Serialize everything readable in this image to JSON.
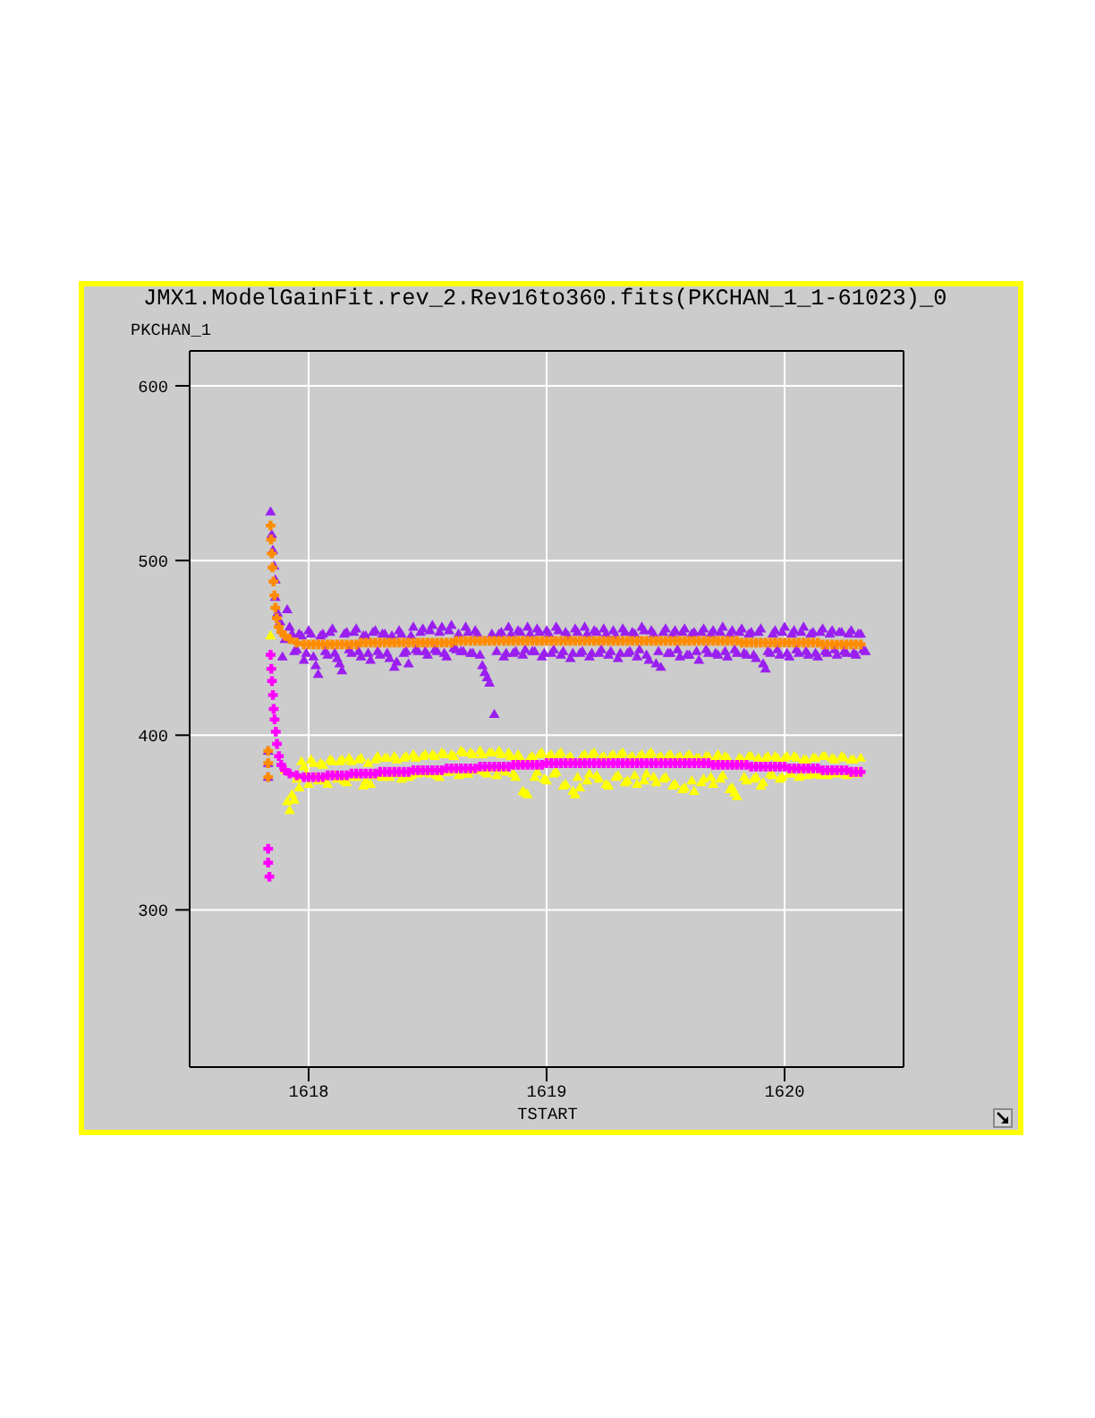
{
  "chart_data": {
    "type": "scatter",
    "title": "JMX1.ModelGainFit.rev_2.Rev16to360.fits(PKCHAN_1_1-61023)_0",
    "xlabel": "TSTART",
    "ylabel": "PKCHAN_1",
    "xlim": [
      1617.5,
      1620.5
    ],
    "ylim": [
      210,
      620
    ],
    "xticks": [
      1618,
      1619,
      1620
    ],
    "yticks": [
      300,
      400,
      500,
      600
    ],
    "grid": true,
    "series": [
      {
        "marker": "triangle",
        "color": "#9a1ff0",
        "x": [
          1617.83,
          1617.83,
          1617.83,
          1617.84,
          1617.845,
          1617.85,
          1617.855,
          1617.86,
          1617.86,
          1617.87,
          1617.88,
          1617.91,
          1617.9,
          1617.89,
          1617.92,
          1617.94,
          1617.96,
          1617.98,
          1618,
          1618.02,
          1618.04,
          1618.06,
          1618.08,
          1618.1,
          1618.12,
          1618.14,
          1618.16,
          1618.18,
          1618.2,
          1618.22,
          1618.24,
          1618.26,
          1618.28,
          1618.3,
          1618.32,
          1618.34,
          1618.36,
          1618.38,
          1618.4,
          1618.42,
          1618.44,
          1618.46,
          1618.48,
          1618.5,
          1618.52,
          1618.54,
          1618.56,
          1618.58,
          1618.6,
          1618.62,
          1618.64,
          1618.66,
          1618.68,
          1618.7,
          1618.72,
          1618.74,
          1618.76,
          1618.78,
          1618.8,
          1618.82,
          1618.84,
          1618.86,
          1618.88,
          1618.9,
          1618.92,
          1618.94,
          1618.96,
          1618.98,
          1619,
          1619.02,
          1619.04,
          1619.06,
          1619.08,
          1619.1,
          1619.12,
          1619.14,
          1619.16,
          1619.18,
          1619.2,
          1619.22,
          1619.24,
          1619.26,
          1619.28,
          1619.3,
          1619.32,
          1619.34,
          1619.36,
          1619.38,
          1619.4,
          1619.42,
          1619.44,
          1619.46,
          1619.48,
          1619.5,
          1619.52,
          1619.54,
          1619.56,
          1619.58,
          1619.6,
          1619.62,
          1619.64,
          1619.66,
          1619.68,
          1619.7,
          1619.72,
          1619.74,
          1619.76,
          1619.78,
          1619.8,
          1619.82,
          1619.84,
          1619.86,
          1619.88,
          1619.9,
          1619.92,
          1619.94,
          1619.96,
          1619.98,
          1620,
          1620.02,
          1620.04,
          1620.06,
          1620.08,
          1620.1,
          1620.12,
          1620.14,
          1620.16,
          1620.18,
          1620.2,
          1620.22,
          1620.24,
          1620.26,
          1620.28,
          1620.3,
          1620.32,
          1620.34,
          1617.93,
          1617.95,
          1617.97,
          1617.99,
          1618.01,
          1618.03,
          1618.05,
          1618.07,
          1618.09,
          1618.11,
          1618.13,
          1618.15,
          1618.17,
          1618.19,
          1618.21,
          1618.23,
          1618.25,
          1618.27,
          1618.29,
          1618.31,
          1618.33,
          1618.35,
          1618.37,
          1618.39,
          1618.41,
          1618.43,
          1618.45,
          1618.47,
          1618.49,
          1618.51,
          1618.53,
          1618.55,
          1618.57,
          1618.59,
          1618.61,
          1618.63,
          1618.65,
          1618.67,
          1618.69,
          1618.71,
          1618.73,
          1618.75,
          1618.77,
          1618.79,
          1618.81,
          1618.83,
          1618.85,
          1618.87,
          1618.89,
          1618.91,
          1618.93,
          1618.95,
          1618.97,
          1618.99,
          1619.01,
          1619.03,
          1619.05,
          1619.07,
          1619.09,
          1619.11,
          1619.13,
          1619.15,
          1619.17,
          1619.19,
          1619.21,
          1619.23,
          1619.25,
          1619.27,
          1619.29,
          1619.31,
          1619.33,
          1619.35,
          1619.37,
          1619.39,
          1619.41,
          1619.43,
          1619.45,
          1619.47,
          1619.49,
          1619.51,
          1619.53,
          1619.55,
          1619.57,
          1619.59,
          1619.61,
          1619.63,
          1619.65,
          1619.67,
          1619.69,
          1619.71,
          1619.73,
          1619.75,
          1619.77,
          1619.79,
          1619.81,
          1619.83,
          1619.85,
          1619.87,
          1619.89,
          1619.91,
          1619.93,
          1619.95,
          1619.97,
          1619.99,
          1620.01,
          1620.03,
          1620.05,
          1620.07,
          1620.09,
          1620.11,
          1620.13,
          1620.15,
          1620.17,
          1620.19,
          1620.21,
          1620.23,
          1620.25,
          1620.27,
          1620.29,
          1620.31,
          1620.33
        ],
        "values": [
          391,
          384,
          376,
          528,
          515,
          506,
          497,
          489,
          479,
          470,
          465,
          472,
          455,
          445,
          462,
          448,
          458,
          443,
          460,
          445,
          435,
          458,
          446,
          461,
          444,
          437,
          459,
          447,
          461,
          445,
          457,
          443,
          460,
          446,
          458,
          444,
          439,
          460,
          447,
          441,
          462,
          448,
          461,
          446,
          463,
          448,
          462,
          445,
          463,
          449,
          448,
          462,
          447,
          460,
          446,
          436,
          430,
          412,
          458,
          445,
          462,
          447,
          460,
          446,
          462,
          448,
          461,
          445,
          460,
          447,
          462,
          446,
          459,
          444,
          461,
          447,
          462,
          445,
          460,
          447,
          461,
          446,
          460,
          444,
          461,
          447,
          459,
          445,
          462,
          446,
          460,
          441,
          439,
          461,
          447,
          460,
          445,
          461,
          446,
          459,
          443,
          461,
          447,
          460,
          446,
          462,
          445,
          460,
          447,
          461,
          446,
          459,
          444,
          461,
          438,
          447,
          460,
          446,
          462,
          445,
          460,
          447,
          462,
          446,
          459,
          445,
          461,
          447,
          460,
          446,
          459,
          447,
          460,
          446,
          458,
          448,
          458,
          449,
          457,
          447,
          458,
          440,
          457,
          448,
          459,
          447,
          441,
          458,
          449,
          459,
          448,
          457,
          447,
          459,
          448,
          458,
          447,
          457,
          442,
          458,
          448,
          457,
          449,
          459,
          448,
          460,
          449,
          459,
          447,
          460,
          450,
          458,
          448,
          459,
          447,
          458,
          440,
          433,
          458,
          448,
          459,
          447,
          458,
          448,
          459,
          449,
          458,
          448,
          459,
          447,
          458,
          449,
          460,
          448,
          457,
          447,
          459,
          448,
          458,
          447,
          459,
          449,
          458,
          448,
          457,
          447,
          459,
          448,
          458,
          449,
          460,
          443,
          458,
          448,
          459,
          447,
          458,
          449,
          459,
          446,
          458,
          448,
          459,
          449,
          458,
          447,
          459,
          448,
          458,
          449,
          459,
          447,
          458,
          446,
          459,
          441,
          448,
          458,
          449,
          459,
          447,
          458,
          449,
          459,
          448,
          458,
          447,
          459,
          448,
          458,
          449,
          459,
          448,
          458,
          447,
          458,
          449
        ]
      },
      {
        "marker": "triangle",
        "color": "#ffff00",
        "x": [
          1617.84,
          1617.9,
          1617.92,
          1617.94,
          1617.96,
          1617.98,
          1618,
          1618.02,
          1618.04,
          1618.06,
          1618.08,
          1618.1,
          1618.12,
          1618.14,
          1618.16,
          1618.18,
          1618.2,
          1618.22,
          1618.24,
          1618.26,
          1618.28,
          1618.3,
          1618.32,
          1618.34,
          1618.36,
          1618.38,
          1618.4,
          1618.42,
          1618.44,
          1618.46,
          1618.48,
          1618.5,
          1618.52,
          1618.54,
          1618.56,
          1618.58,
          1618.6,
          1618.62,
          1618.64,
          1618.66,
          1618.68,
          1618.7,
          1618.72,
          1618.74,
          1618.76,
          1618.78,
          1618.8,
          1618.82,
          1618.84,
          1618.86,
          1618.88,
          1618.9,
          1618.92,
          1618.94,
          1618.96,
          1618.98,
          1619,
          1619.02,
          1619.04,
          1619.06,
          1619.08,
          1619.1,
          1619.12,
          1619.14,
          1619.16,
          1619.18,
          1619.2,
          1619.22,
          1619.24,
          1619.26,
          1619.28,
          1619.3,
          1619.32,
          1619.34,
          1619.36,
          1619.38,
          1619.4,
          1619.42,
          1619.44,
          1619.46,
          1619.48,
          1619.5,
          1619.52,
          1619.54,
          1619.56,
          1619.58,
          1619.6,
          1619.62,
          1619.64,
          1619.66,
          1619.68,
          1619.7,
          1619.72,
          1619.74,
          1619.76,
          1619.78,
          1619.8,
          1619.82,
          1619.84,
          1619.86,
          1619.88,
          1619.9,
          1619.92,
          1619.94,
          1619.96,
          1619.98,
          1620,
          1620.02,
          1620.04,
          1620.06,
          1620.08,
          1620.1,
          1620.12,
          1620.14,
          1620.16,
          1620.18,
          1620.2,
          1620.22,
          1620.24,
          1620.26,
          1620.28,
          1620.3,
          1620.32,
          1617.91,
          1617.93,
          1617.95,
          1617.97,
          1617.99,
          1618.01,
          1618.03,
          1618.05,
          1618.07,
          1618.09,
          1618.11,
          1618.13,
          1618.15,
          1618.17,
          1618.19,
          1618.21,
          1618.23,
          1618.25,
          1618.27,
          1618.29,
          1618.31,
          1618.33,
          1618.35,
          1618.37,
          1618.39,
          1618.41,
          1618.43,
          1618.45,
          1618.47,
          1618.49,
          1618.51,
          1618.53,
          1618.55,
          1618.57,
          1618.59,
          1618.61,
          1618.63,
          1618.65,
          1618.67,
          1618.69,
          1618.71,
          1618.73,
          1618.75,
          1618.77,
          1618.79,
          1618.81,
          1618.83,
          1618.85,
          1618.87,
          1618.89,
          1618.91,
          1618.93,
          1618.95,
          1618.97,
          1618.99,
          1619.01,
          1619.03,
          1619.05,
          1619.07,
          1619.09,
          1619.11,
          1619.13,
          1619.15,
          1619.17,
          1619.19,
          1619.21,
          1619.23,
          1619.25,
          1619.27,
          1619.29,
          1619.31,
          1619.33,
          1619.35,
          1619.37,
          1619.39,
          1619.41,
          1619.43,
          1619.45,
          1619.47,
          1619.49,
          1619.51,
          1619.53,
          1619.55,
          1619.57,
          1619.59,
          1619.61,
          1619.63,
          1619.65,
          1619.67,
          1619.69,
          1619.71,
          1619.73,
          1619.75,
          1619.77,
          1619.79,
          1619.81,
          1619.83,
          1619.85,
          1619.87,
          1619.89,
          1619.91,
          1619.93,
          1619.95,
          1619.97,
          1619.99,
          1620.01,
          1620.03,
          1620.05,
          1620.07,
          1620.09,
          1620.11,
          1620.13,
          1620.15,
          1620.17,
          1620.19,
          1620.21,
          1620.23,
          1620.25,
          1620.27,
          1620.29,
          1620.31
        ],
        "values": [
          457,
          380,
          357,
          363,
          370,
          382,
          372,
          384,
          374,
          383,
          372,
          385,
          375,
          386,
          373,
          385,
          376,
          387,
          374,
          372,
          386,
          377,
          387,
          376,
          388,
          378,
          387,
          376,
          389,
          378,
          388,
          379,
          389,
          377,
          390,
          379,
          389,
          380,
          391,
          378,
          390,
          380,
          391,
          379,
          390,
          381,
          391,
          380,
          390,
          378,
          389,
          368,
          366,
          388,
          379,
          390,
          374,
          389,
          379,
          390,
          372,
          388,
          366,
          370,
          389,
          378,
          390,
          375,
          388,
          371,
          389,
          377,
          390,
          374,
          388,
          372,
          389,
          378,
          390,
          373,
          388,
          376,
          389,
          372,
          388,
          370,
          389,
          368,
          387,
          375,
          388,
          372,
          389,
          377,
          387,
          370,
          365,
          386,
          374,
          388,
          376,
          371,
          387,
          378,
          388,
          375,
          387,
          378,
          388,
          376,
          386,
          377,
          387,
          378,
          388,
          377,
          387,
          378,
          388,
          377,
          386,
          378,
          387,
          362,
          366,
          375,
          385,
          378,
          386,
          376,
          384,
          374,
          386,
          377,
          385,
          374,
          387,
          376,
          386,
          371,
          384,
          377,
          388,
          376,
          387,
          378,
          386,
          375,
          388,
          377,
          387,
          379,
          389,
          378,
          388,
          376,
          389,
          379,
          388,
          377,
          390,
          378,
          389,
          380,
          389,
          378,
          390,
          377,
          389,
          379,
          388,
          376,
          387,
          367,
          387,
          376,
          389,
          375,
          388,
          378,
          389,
          371,
          387,
          368,
          376,
          388,
          374,
          389,
          377,
          387,
          372,
          388,
          376,
          389,
          373,
          387,
          377,
          388,
          374,
          389,
          376,
          387,
          375,
          388,
          371,
          387,
          369,
          388,
          374,
          387,
          373,
          388,
          376,
          387,
          375,
          388,
          369,
          367,
          387,
          376,
          388,
          375,
          387,
          373,
          388,
          377,
          387,
          376,
          388,
          378,
          387,
          377,
          386,
          378,
          387,
          377,
          388,
          378,
          386,
          379,
          387,
          378,
          386,
          379
        ]
      },
      {
        "marker": "cross",
        "color": "#ff8c00",
        "x": [
          1617.83,
          1617.83,
          1617.83,
          1617.84,
          1617.842,
          1617.845,
          1617.848,
          1617.852,
          1617.856,
          1617.86,
          1617.866,
          1617.874,
          1617.885,
          1617.9,
          1617.92,
          1617.95,
          1617.98,
          1618,
          1618.02,
          1618.04,
          1618.06,
          1618.08,
          1618.1,
          1618.12,
          1618.14,
          1618.16,
          1618.18,
          1618.2,
          1618.22,
          1618.24,
          1618.26,
          1618.28,
          1618.3,
          1618.32,
          1618.34,
          1618.36,
          1618.38,
          1618.4,
          1618.42,
          1618.44,
          1618.46,
          1618.48,
          1618.5,
          1618.52,
          1618.54,
          1618.56,
          1618.58,
          1618.6,
          1618.62,
          1618.64,
          1618.66,
          1618.68,
          1618.7,
          1618.72,
          1618.74,
          1618.76,
          1618.78,
          1618.8,
          1618.82,
          1618.84,
          1618.86,
          1618.88,
          1618.9,
          1618.92,
          1618.94,
          1618.96,
          1618.98,
          1619,
          1619.02,
          1619.04,
          1619.06,
          1619.08,
          1619.1,
          1619.12,
          1619.14,
          1619.16,
          1619.18,
          1619.2,
          1619.22,
          1619.24,
          1619.26,
          1619.28,
          1619.3,
          1619.32,
          1619.34,
          1619.36,
          1619.38,
          1619.4,
          1619.42,
          1619.44,
          1619.46,
          1619.48,
          1619.5,
          1619.52,
          1619.54,
          1619.56,
          1619.58,
          1619.6,
          1619.62,
          1619.64,
          1619.66,
          1619.68,
          1619.7,
          1619.72,
          1619.74,
          1619.76,
          1619.78,
          1619.8,
          1619.82,
          1619.84,
          1619.86,
          1619.88,
          1619.9,
          1619.92,
          1619.94,
          1619.96,
          1619.98,
          1620,
          1620.02,
          1620.04,
          1620.06,
          1620.08,
          1620.1,
          1620.12,
          1620.14,
          1620.16,
          1620.18,
          1620.2,
          1620.22,
          1620.24,
          1620.26,
          1620.28,
          1620.3,
          1620.32
        ],
        "values": [
          391,
          384,
          376,
          520,
          512,
          504,
          496,
          488,
          480,
          473,
          467,
          462,
          459,
          457,
          455,
          453,
          452,
          452,
          452,
          452,
          452,
          452,
          452,
          452,
          452,
          452,
          452,
          452,
          453,
          453,
          453,
          453,
          453,
          453,
          453,
          453,
          453,
          453,
          453,
          453,
          453,
          453,
          453,
          453,
          453,
          453,
          453,
          453,
          454,
          454,
          454,
          454,
          454,
          454,
          454,
          454,
          454,
          454,
          454,
          454,
          454,
          454,
          454,
          454,
          454,
          454,
          454,
          454,
          454,
          454,
          454,
          454,
          454,
          454,
          454,
          454,
          454,
          454,
          454,
          454,
          454,
          454,
          454,
          454,
          454,
          454,
          454,
          454,
          454,
          454,
          454,
          454,
          454,
          454,
          454,
          454,
          454,
          454,
          454,
          454,
          454,
          454,
          454,
          454,
          454,
          454,
          454,
          454,
          453,
          453,
          453,
          453,
          453,
          453,
          453,
          453,
          453,
          453,
          453,
          453,
          453,
          453,
          453,
          453,
          453,
          452,
          452,
          452,
          452,
          452,
          452,
          452,
          452,
          452
        ]
      },
      {
        "marker": "cross",
        "color": "#ff00ff",
        "x": [
          1617.83,
          1617.83,
          1617.835,
          1617.84,
          1617.843,
          1617.846,
          1617.85,
          1617.853,
          1617.857,
          1617.862,
          1617.867,
          1617.875,
          1617.885,
          1617.9,
          1617.92,
          1617.95,
          1617.98,
          1618,
          1618.02,
          1618.04,
          1618.06,
          1618.08,
          1618.1,
          1618.12,
          1618.14,
          1618.16,
          1618.18,
          1618.2,
          1618.22,
          1618.24,
          1618.26,
          1618.28,
          1618.3,
          1618.32,
          1618.34,
          1618.36,
          1618.38,
          1618.4,
          1618.42,
          1618.44,
          1618.46,
          1618.48,
          1618.5,
          1618.52,
          1618.54,
          1618.56,
          1618.58,
          1618.6,
          1618.62,
          1618.64,
          1618.66,
          1618.68,
          1618.7,
          1618.72,
          1618.74,
          1618.76,
          1618.78,
          1618.8,
          1618.82,
          1618.84,
          1618.86,
          1618.88,
          1618.9,
          1618.92,
          1618.94,
          1618.96,
          1618.98,
          1619,
          1619.02,
          1619.04,
          1619.06,
          1619.08,
          1619.1,
          1619.12,
          1619.14,
          1619.16,
          1619.18,
          1619.2,
          1619.22,
          1619.24,
          1619.26,
          1619.28,
          1619.3,
          1619.32,
          1619.34,
          1619.36,
          1619.38,
          1619.4,
          1619.42,
          1619.44,
          1619.46,
          1619.48,
          1619.5,
          1619.52,
          1619.54,
          1619.56,
          1619.58,
          1619.6,
          1619.62,
          1619.64,
          1619.66,
          1619.68,
          1619.7,
          1619.72,
          1619.74,
          1619.76,
          1619.78,
          1619.8,
          1619.82,
          1619.84,
          1619.86,
          1619.88,
          1619.9,
          1619.92,
          1619.94,
          1619.96,
          1619.98,
          1620,
          1620.02,
          1620.04,
          1620.06,
          1620.08,
          1620.1,
          1620.12,
          1620.14,
          1620.16,
          1620.18,
          1620.2,
          1620.22,
          1620.24,
          1620.26,
          1620.28,
          1620.3,
          1620.32
        ],
        "values": [
          335,
          327,
          319,
          446,
          438,
          431,
          423,
          415,
          409,
          402,
          395,
          388,
          383,
          380,
          378,
          377,
          376,
          376,
          376,
          376,
          376,
          377,
          377,
          377,
          377,
          377,
          378,
          378,
          378,
          378,
          378,
          378,
          379,
          379,
          379,
          379,
          379,
          379,
          379,
          380,
          380,
          380,
          380,
          380,
          380,
          380,
          381,
          381,
          381,
          381,
          381,
          381,
          381,
          382,
          382,
          382,
          382,
          382,
          382,
          382,
          383,
          383,
          383,
          383,
          383,
          383,
          383,
          384,
          384,
          384,
          384,
          384,
          384,
          384,
          384,
          384,
          384,
          384,
          384,
          384,
          384,
          384,
          384,
          384,
          384,
          384,
          384,
          384,
          384,
          384,
          384,
          384,
          384,
          384,
          384,
          384,
          384,
          384,
          384,
          384,
          384,
          384,
          383,
          383,
          383,
          383,
          383,
          383,
          383,
          383,
          382,
          382,
          382,
          382,
          382,
          382,
          382,
          382,
          381,
          381,
          381,
          381,
          381,
          381,
          381,
          380,
          380,
          380,
          380,
          380,
          380,
          379,
          379,
          379
        ]
      }
    ]
  }
}
